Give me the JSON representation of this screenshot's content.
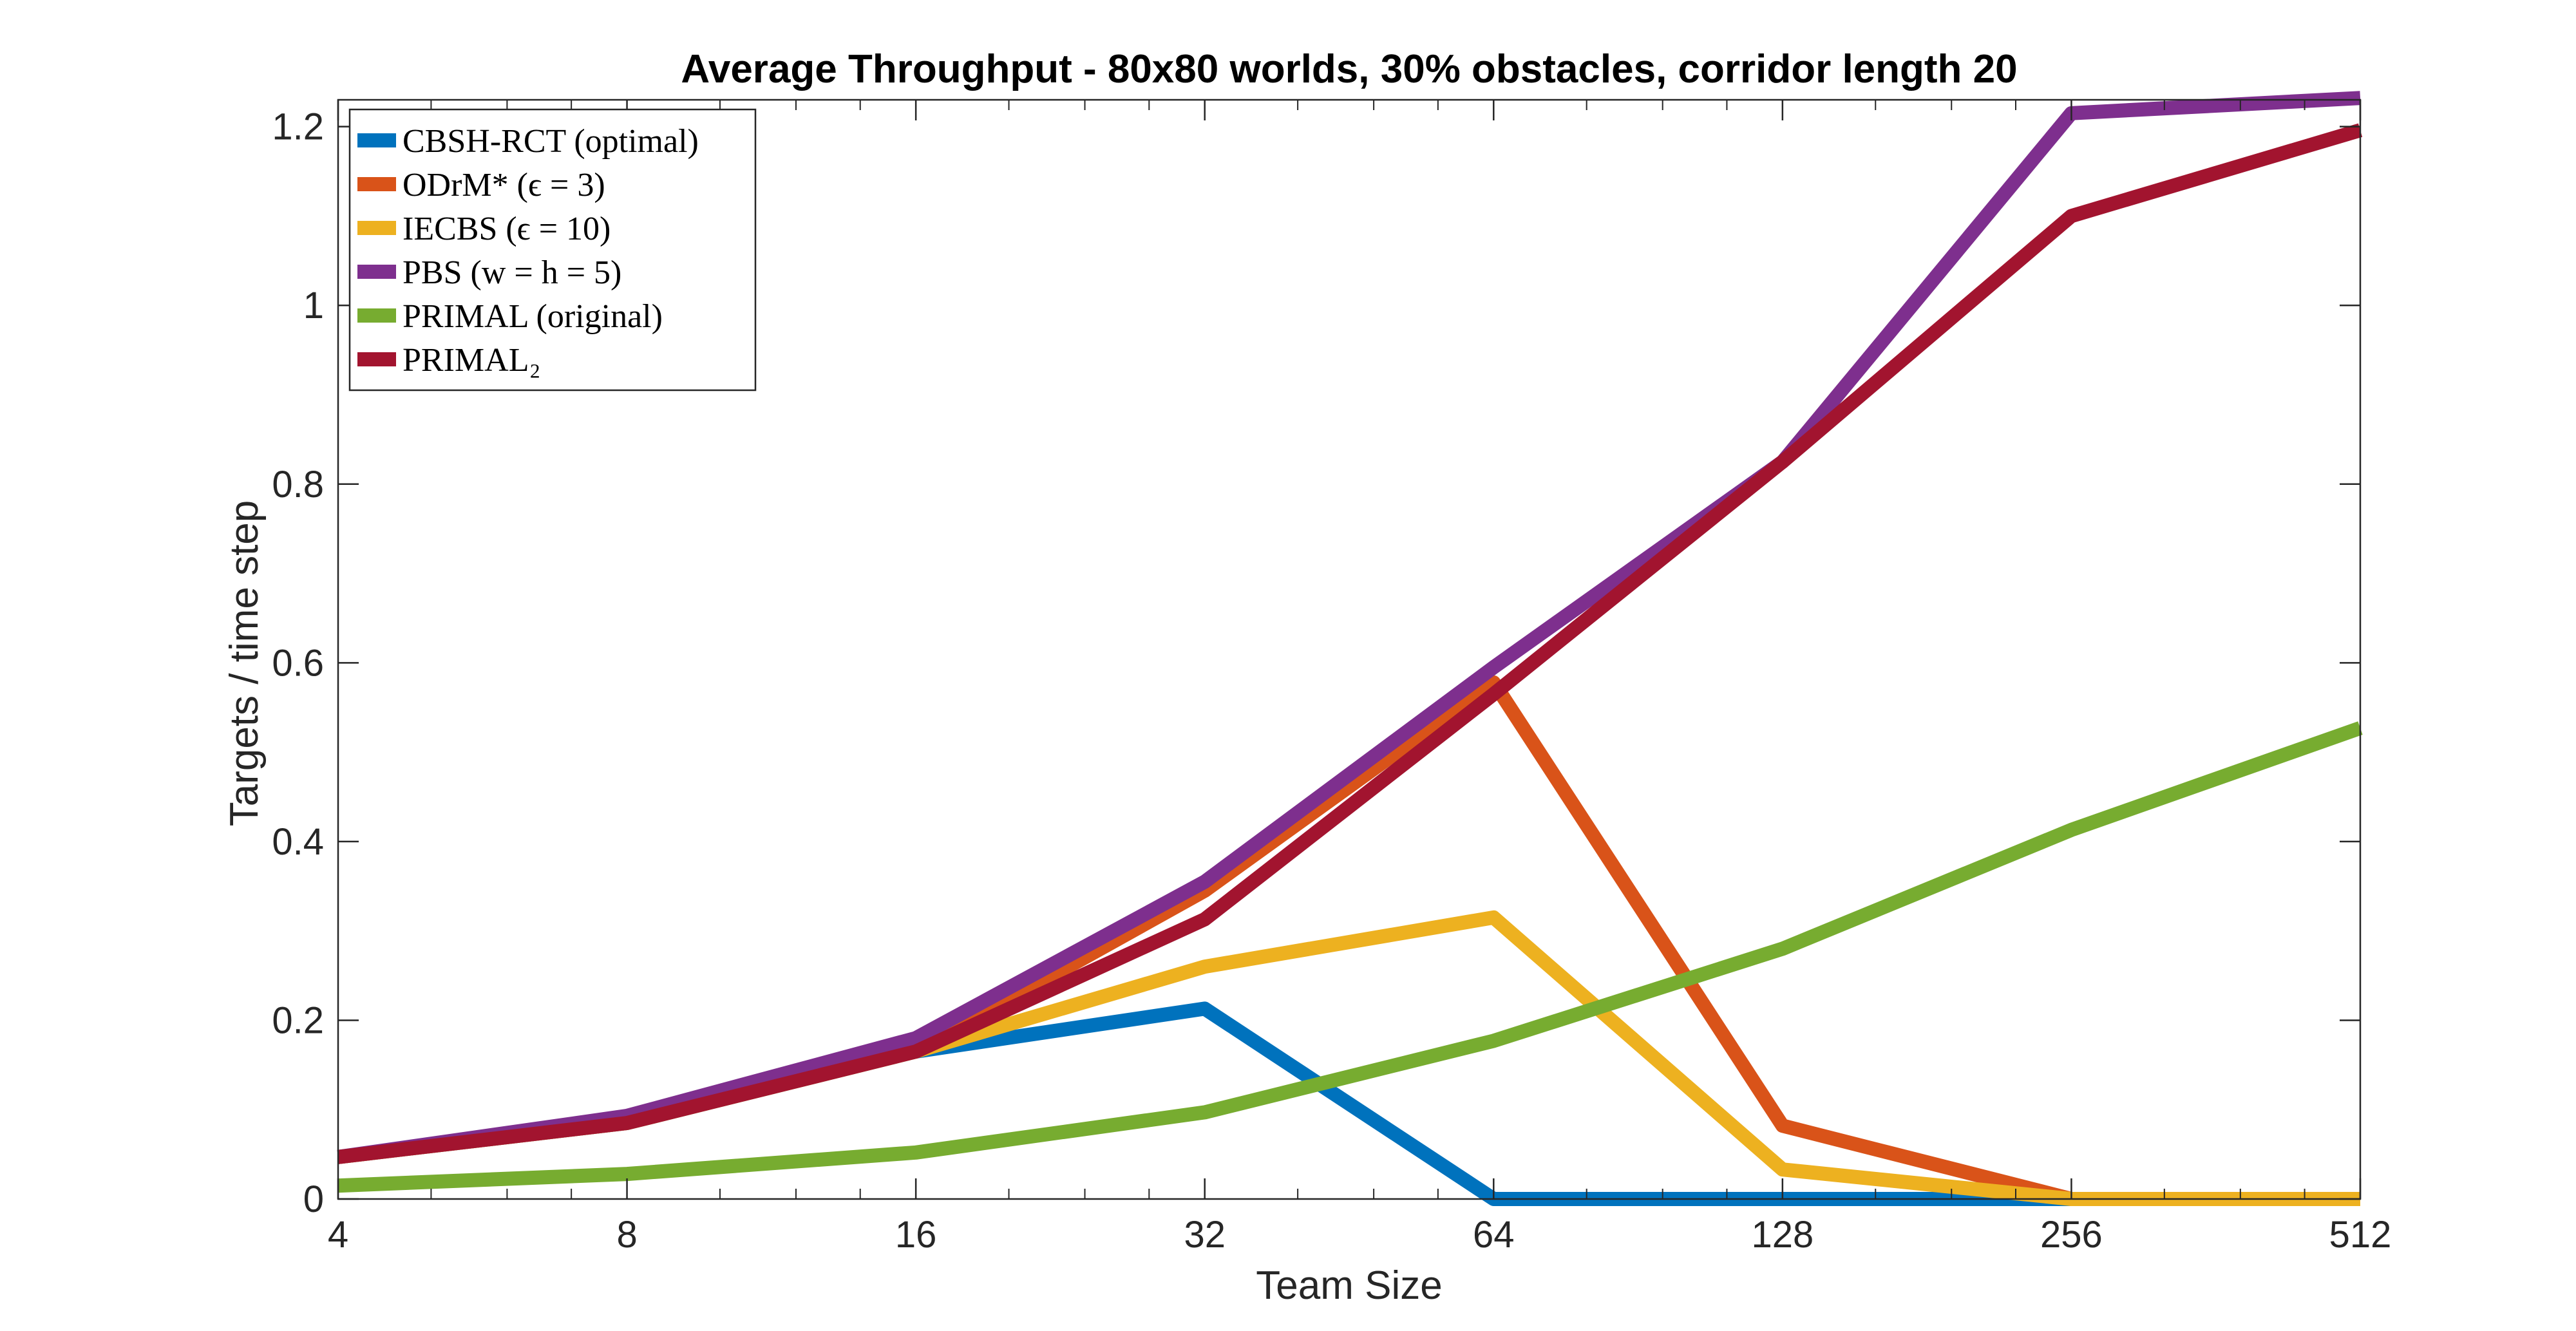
{
  "chart_data": {
    "type": "line",
    "title": "Average Throughput - 80x80 worlds, 30% obstacles, corridor length 20",
    "xlabel": "Team Size",
    "ylabel": "Targets / time step",
    "x_scale": "log2",
    "x": [
      4,
      8,
      16,
      32,
      64,
      128,
      256,
      512
    ],
    "x_tick_labels": [
      "4",
      "8",
      "16",
      "32",
      "64",
      "128",
      "256",
      "512"
    ],
    "xlim": [
      4,
      512
    ],
    "ylim": [
      0,
      1.23
    ],
    "y_ticks": [
      0,
      0.2,
      0.4,
      0.6,
      0.8,
      1.0,
      1.2
    ],
    "y_tick_labels": [
      "0",
      "0.2",
      "0.4",
      "0.6",
      "0.8",
      "1",
      "1.2"
    ],
    "grid": false,
    "legend_position": "top-left",
    "series": [
      {
        "name": "CBSH-RCT (optimal)",
        "color": "#0072BD",
        "values": [
          0.047,
          0.085,
          0.165,
          0.213,
          0.0,
          0.0,
          0.0,
          0.0
        ]
      },
      {
        "name": "ODrM* (ϵ = 3)",
        "color": "#D95319",
        "values": [
          0.047,
          0.085,
          0.165,
          0.345,
          0.578,
          0.082,
          0.0,
          0.0
        ]
      },
      {
        "name": "IECBS (ϵ = 10)",
        "color": "#EDB120",
        "values": [
          0.047,
          0.085,
          0.165,
          0.26,
          0.315,
          0.033,
          0.0,
          0.0
        ]
      },
      {
        "name": "PBS (w = h = 5)",
        "color": "#7E2F8E",
        "values": [
          0.047,
          0.093,
          0.18,
          0.355,
          0.595,
          0.825,
          1.215,
          1.232
        ]
      },
      {
        "name": "PRIMAL (original)",
        "color": "#77AC30",
        "values": [
          0.015,
          0.028,
          0.052,
          0.097,
          0.177,
          0.28,
          0.413,
          0.527
        ]
      },
      {
        "name": "PRIMAL₂",
        "color": "#A2142F",
        "values": [
          0.047,
          0.085,
          0.165,
          0.313,
          0.565,
          0.825,
          1.1,
          1.196
        ]
      }
    ]
  }
}
